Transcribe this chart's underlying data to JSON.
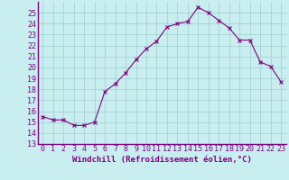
{
  "x": [
    0,
    1,
    2,
    3,
    4,
    5,
    6,
    7,
    8,
    9,
    10,
    11,
    12,
    13,
    14,
    15,
    16,
    17,
    18,
    19,
    20,
    21,
    22,
    23
  ],
  "y": [
    15.5,
    15.2,
    15.2,
    14.7,
    14.7,
    15.0,
    17.8,
    18.5,
    19.5,
    20.7,
    21.7,
    22.4,
    23.7,
    24.0,
    24.2,
    25.5,
    25.0,
    24.3,
    23.6,
    22.5,
    22.5,
    20.5,
    20.1,
    18.7
  ],
  "line_color": "#800080",
  "marker": "x",
  "marker_size": 3,
  "bg_color": "#c8eef0",
  "grid_color": "#a0ccd0",
  "xlabel": "Windchill (Refroidissement éolien,°C)",
  "xlabel_fontsize": 6.5,
  "tick_fontsize": 6,
  "ylim": [
    13,
    26
  ],
  "yticks": [
    13,
    14,
    15,
    16,
    17,
    18,
    19,
    20,
    21,
    22,
    23,
    24,
    25
  ],
  "xlim": [
    -0.5,
    23.5
  ],
  "xticks": [
    0,
    1,
    2,
    3,
    4,
    5,
    6,
    7,
    8,
    9,
    10,
    11,
    12,
    13,
    14,
    15,
    16,
    17,
    18,
    19,
    20,
    21,
    22,
    23
  ],
  "spine_color": "#800080",
  "axis_line_color": "#800080"
}
